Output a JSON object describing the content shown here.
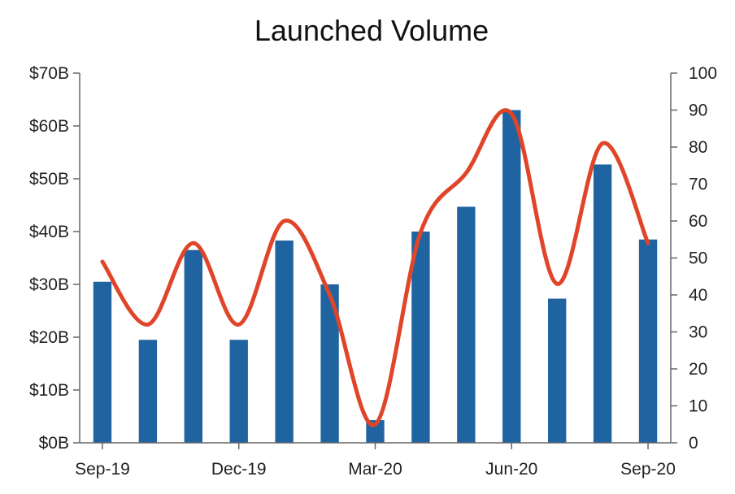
{
  "chart_data": {
    "type": "bar",
    "title": "Launched Volume",
    "categories": [
      "Sep-19",
      "Oct-19",
      "Nov-19",
      "Dec-19",
      "Jan-20",
      "Feb-20",
      "Mar-20",
      "Apr-20",
      "May-20",
      "Jun-20",
      "Jul-20",
      "Aug-20",
      "Sep-20"
    ],
    "x_tick_labels": [
      "Sep-19",
      "Dec-19",
      "Mar-20",
      "Jun-20",
      "Sep-20"
    ],
    "series": [
      {
        "type": "bar",
        "axis": "left",
        "color": "#1f64a0",
        "values": [
          30.5,
          19.5,
          36.5,
          19.5,
          38.3,
          30.0,
          4.3,
          40.0,
          44.7,
          63.0,
          27.3,
          52.7,
          38.5
        ]
      },
      {
        "type": "line",
        "axis": "right",
        "color": "#e0452a",
        "smooth": true,
        "values": [
          49,
          32,
          54,
          32,
          60,
          40,
          5,
          57,
          73,
          89,
          43,
          81,
          54
        ]
      }
    ],
    "y_left": {
      "min": 0,
      "max": 70,
      "step": 10,
      "tick_labels": [
        "$0B",
        "$10B",
        "$20B",
        "$30B",
        "$40B",
        "$50B",
        "$60B",
        "$70B"
      ]
    },
    "y_right": {
      "min": 0,
      "max": 100,
      "step": 10,
      "tick_labels": [
        "0",
        "10",
        "20",
        "30",
        "40",
        "50",
        "60",
        "70",
        "80",
        "90",
        "100"
      ]
    },
    "grid": false,
    "legend": "none"
  }
}
